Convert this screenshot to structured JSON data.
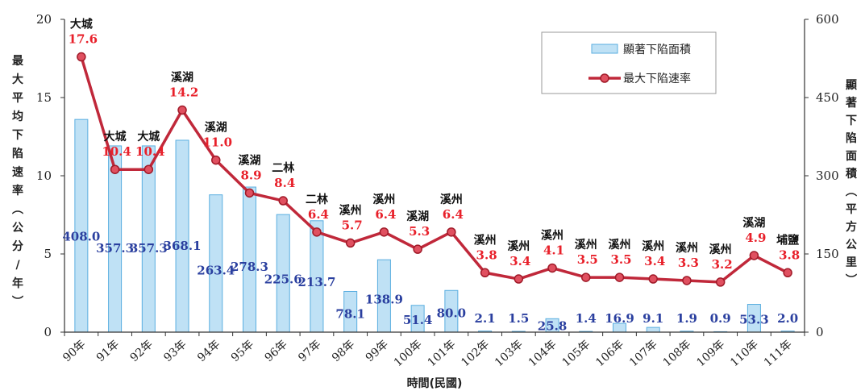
{
  "chart_data": {
    "type": "bar+line",
    "xlabel": "時間(民國)",
    "ylabel_left": "最大平均下陷速率(公分/年)",
    "ylabel_right": "顯著下陷面積(平方公里)",
    "ylim_left": [
      0,
      20
    ],
    "ylim_right": [
      0,
      600
    ],
    "left_ticks": [
      "0",
      "5",
      "10",
      "15",
      "20"
    ],
    "right_ticks": [
      "0",
      "150",
      "300",
      "450",
      "600"
    ],
    "categories": [
      "90年",
      "91年",
      "92年",
      "93年",
      "94年",
      "95年",
      "96年",
      "97年",
      "98年",
      "99年",
      "100年",
      "101年",
      "102年",
      "103年",
      "104年",
      "105年",
      "106年",
      "107年",
      "108年",
      "109年",
      "110年",
      "111年"
    ],
    "series": [
      {
        "name": "顯著下陷面積",
        "type": "bar",
        "axis": "right",
        "values": [
          408.0,
          357.3,
          357.3,
          368.1,
          263.4,
          278.3,
          225.6,
          213.7,
          78.1,
          138.9,
          51.4,
          80.0,
          2.1,
          1.5,
          25.8,
          1.4,
          16.9,
          9.1,
          1.9,
          0.9,
          53.3,
          2.0
        ],
        "labels": [
          "408.0",
          "357.3",
          "357.3",
          "368.1",
          "263.4",
          "278.3",
          "225.6",
          "213.7",
          "78.1",
          "138.9",
          "51.4",
          "80.0",
          "2.1",
          "1.5",
          "25.8",
          "1.4",
          "16.9",
          "9.1",
          "1.9",
          "0.9",
          "53.3",
          "2.0"
        ],
        "color": "#bfe1f5",
        "border": "#5aaee0",
        "label_color": "#2a3f9f"
      },
      {
        "name": "最大下陷速率",
        "type": "line",
        "axis": "left",
        "values": [
          17.6,
          10.4,
          10.4,
          14.2,
          11.0,
          8.9,
          8.4,
          6.4,
          5.7,
          6.4,
          5.3,
          6.4,
          3.8,
          3.4,
          4.1,
          3.5,
          3.5,
          3.4,
          3.3,
          3.2,
          4.9,
          3.8
        ],
        "labels": [
          "17.6",
          "10.4",
          "10.4",
          "14.2",
          "11.0",
          "8.9",
          "8.4",
          "6.4",
          "5.7",
          "6.4",
          "5.3",
          "6.4",
          "3.8",
          "3.4",
          "4.1",
          "3.5",
          "3.5",
          "3.4",
          "3.3",
          "3.2",
          "4.9",
          "3.8"
        ],
        "places": [
          "大城",
          "大城",
          "大城",
          "溪湖",
          "溪湖",
          "溪湖",
          "二林",
          "二林",
          "溪州",
          "溪州",
          "溪湖",
          "溪州",
          "溪州",
          "溪州",
          "溪州",
          "溪州",
          "溪州",
          "溪州",
          "溪州",
          "溪州",
          "溪湖",
          "埔鹽"
        ],
        "color": "#c0283a",
        "label_color": "#e8202a"
      }
    ],
    "legend": {
      "placement": "top-right",
      "items": [
        "顯著下陷面積",
        "最大下陷速率"
      ]
    }
  }
}
